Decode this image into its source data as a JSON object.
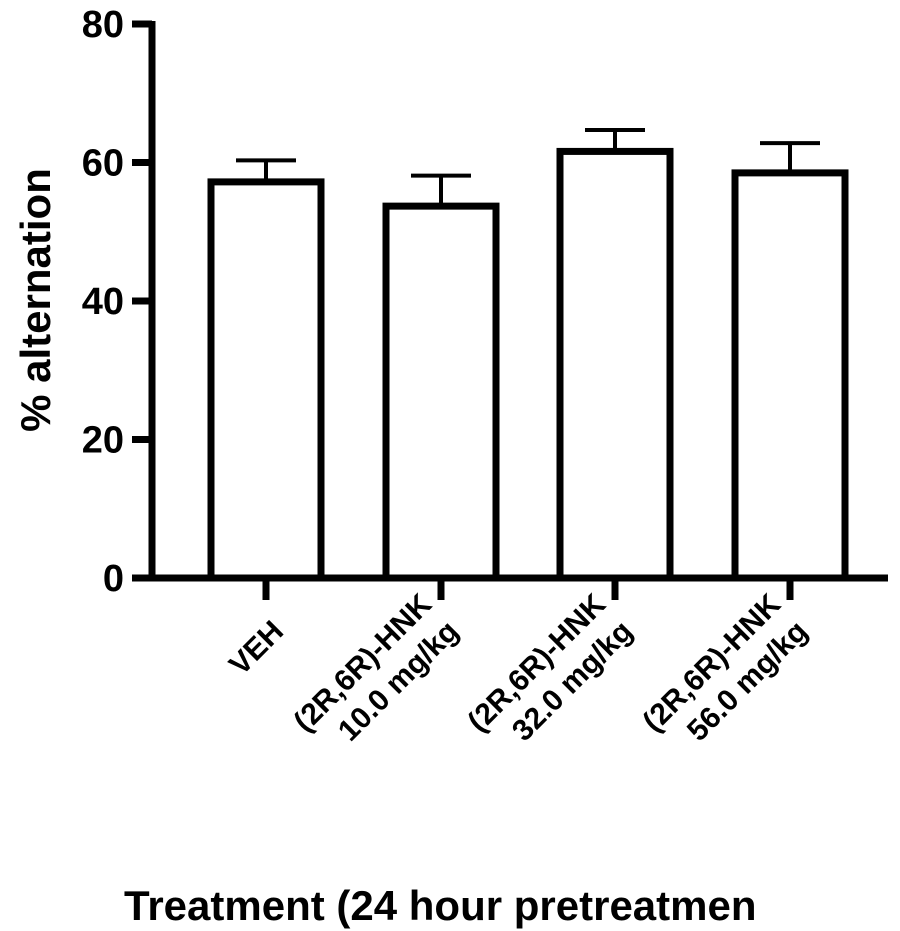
{
  "chart_data": {
    "type": "bar",
    "title": "",
    "xlabel": "Treatment (24 hour pretreatmen",
    "ylabel": "% alternation",
    "ylim": [
      0,
      80
    ],
    "yticks": [
      0,
      20,
      40,
      60,
      80
    ],
    "categories": [
      [
        "VEH"
      ],
      [
        "(2R,6R)-HNK",
        "10.0 mg/kg"
      ],
      [
        "(2R,6R)-HNK",
        "32.0 mg/kg"
      ],
      [
        "(2R,6R)-HNK",
        "56.0 mg/kg"
      ]
    ],
    "values": [
      57.2,
      53.7,
      61.6,
      58.5
    ],
    "error_upper": [
      3.1,
      4.4,
      3.1,
      4.3
    ],
    "grid": false,
    "legend": "none",
    "bar_fill": "#ffffff",
    "bar_stroke": "#000000"
  }
}
